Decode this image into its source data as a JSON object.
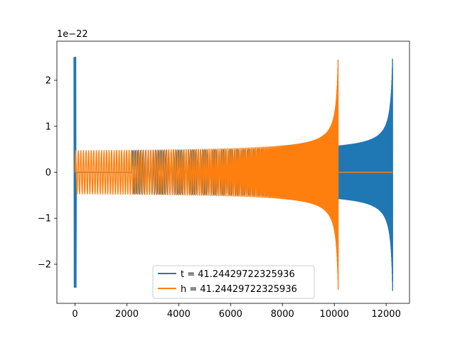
{
  "chart_data": {
    "type": "line",
    "title": "",
    "xlabel": "",
    "ylabel": "",
    "y_offset_text": "1e−22",
    "xlim": [
      -700,
      12900
    ],
    "ylim": [
      -2.85,
      2.85
    ],
    "xticks": [
      0,
      2000,
      4000,
      6000,
      8000,
      10000,
      12000
    ],
    "yticks": [
      -2,
      -1,
      0,
      1,
      2
    ],
    "xtick_labels": [
      "0",
      "2000",
      "4000",
      "6000",
      "8000",
      "10000",
      "12000"
    ],
    "ytick_labels": [
      "−2",
      "−1",
      "0",
      "1",
      "2"
    ],
    "grid": false,
    "legend_position": "lower-center",
    "series": [
      {
        "name": "t = 41.24429722325936",
        "color": "#1f77b4",
        "segments": [
          {
            "kind": "burst",
            "x_start": -40,
            "x_end": 50,
            "amplitude": 2.5
          },
          {
            "kind": "flat",
            "x_start": 50,
            "x_end": 2200,
            "value": 0
          },
          {
            "kind": "chirp",
            "x_start": 2200,
            "x_end": 12250,
            "amp_start": 0.47,
            "amp_end": 2.6,
            "period_start": 100,
            "period_end": 8
          }
        ]
      },
      {
        "name": "h = 41.24429722325936",
        "color": "#ff7f0e",
        "segments": [
          {
            "kind": "chirp",
            "x_start": 0,
            "x_end": 10150,
            "amp_start": 0.47,
            "amp_end": 2.6,
            "period_start": 100,
            "period_end": 8
          },
          {
            "kind": "flat",
            "x_start": 10150,
            "x_end": 12250,
            "value": 0
          }
        ]
      }
    ]
  }
}
